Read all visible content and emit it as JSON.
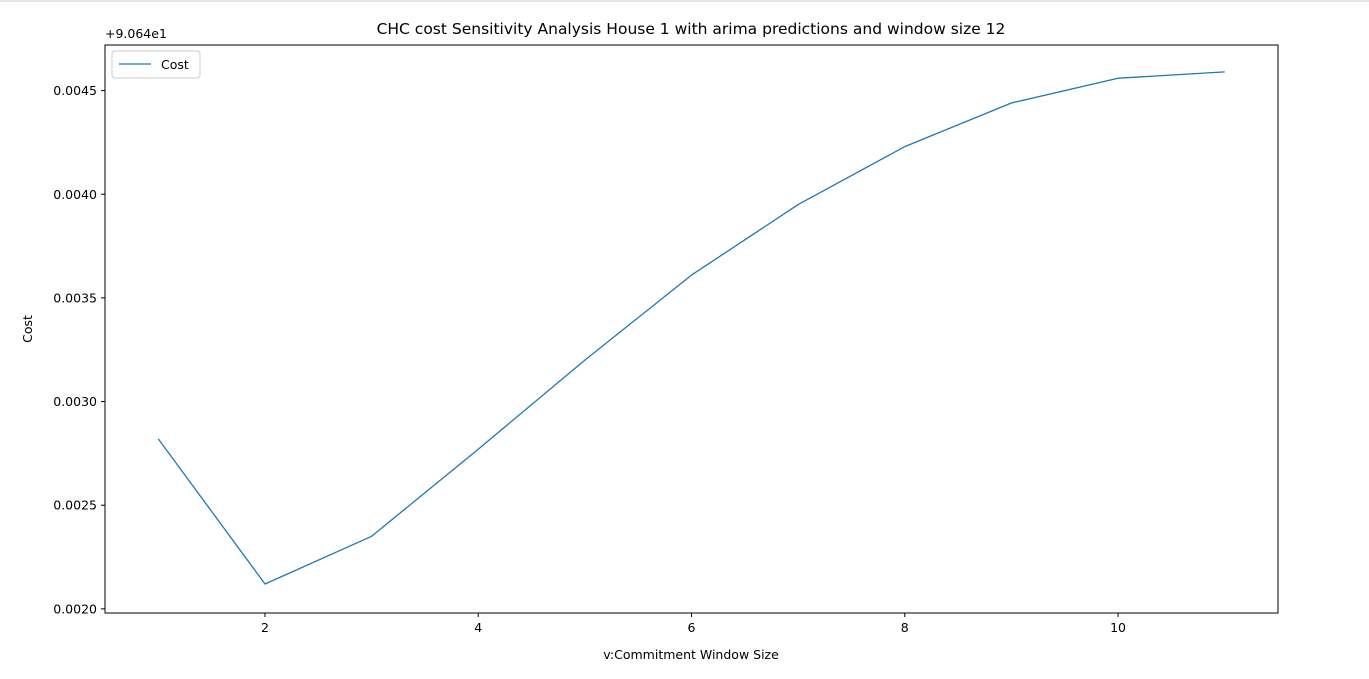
{
  "chart_data": {
    "type": "line",
    "title": "CHC cost Sensitivity Analysis House 1 with arima predictions and window size 12",
    "xlabel": "v:Commitment Window Size",
    "ylabel": "Cost",
    "y_offset_label": "+9.064e1",
    "xlim": [
      0.5,
      11.5
    ],
    "ylim": [
      0.00198,
      0.00472
    ],
    "x_ticks": [
      2,
      4,
      6,
      8,
      10
    ],
    "x_tick_labels": [
      "2",
      "4",
      "6",
      "8",
      "10"
    ],
    "y_ticks": [
      0.002,
      0.0025,
      0.003,
      0.0035,
      0.004,
      0.0045
    ],
    "y_tick_labels": [
      "0.0020",
      "0.0025",
      "0.0030",
      "0.0035",
      "0.0040",
      "0.0045"
    ],
    "grid": false,
    "legend_position": "upper left",
    "series": [
      {
        "name": "Cost",
        "color": "#1f77b4",
        "x": [
          1,
          2,
          3,
          4,
          5,
          6,
          7,
          8,
          9,
          10,
          11
        ],
        "y": [
          0.00282,
          0.00212,
          0.00235,
          0.00277,
          0.0032,
          0.00361,
          0.00395,
          0.00423,
          0.00444,
          0.00456,
          0.00459
        ]
      }
    ]
  }
}
